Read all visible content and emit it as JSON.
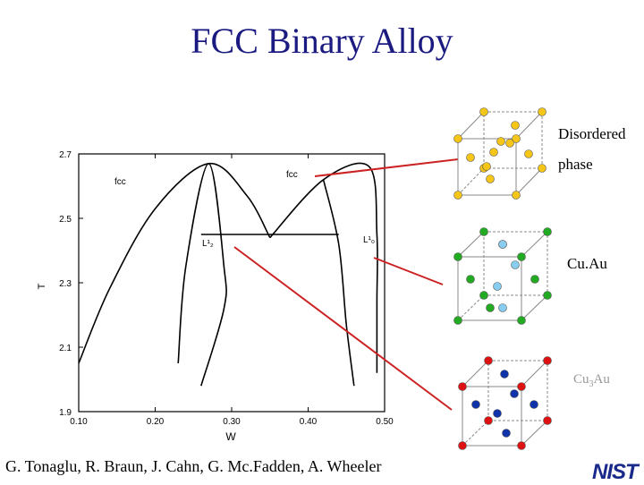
{
  "slide": {
    "title": "FCC Binary Alloy",
    "credits": "G. Tonaglu, R. Braun, J. Cahn, G. Mc.Fadden, A. Wheeler",
    "logo": "NIST"
  },
  "structures": [
    {
      "label_line1": "Disordered",
      "label_line2": "phase"
    },
    {
      "label": "Cu.Au"
    },
    {
      "label_base": "Cu",
      "label_sub": "3",
      "label_rest": "Au"
    }
  ],
  "chart_data": {
    "type": "line",
    "xlabel": "W",
    "ylabel": "T",
    "xlim": [
      0.1,
      0.5
    ],
    "ylim": [
      1.9,
      2.7
    ],
    "x_ticks": [
      "0.10",
      "0.20",
      "0.30",
      "0.40",
      "0.50"
    ],
    "y_ticks": [
      "2.7",
      "2.5",
      "2.3",
      "2.1",
      "1.9"
    ],
    "region_labels": [
      "fcc",
      "fcc",
      "L¹₂",
      "L¹₀"
    ],
    "series": [
      {
        "points": [
          [
            0.1,
            2.05
          ],
          [
            0.14,
            2.28
          ],
          [
            0.2,
            2.53
          ],
          [
            0.27,
            2.67
          ],
          [
            0.32,
            2.57
          ],
          [
            0.35,
            2.44
          ]
        ]
      },
      {
        "points": [
          [
            0.23,
            2.05
          ],
          [
            0.24,
            2.35
          ],
          [
            0.27,
            2.67
          ],
          [
            0.29,
            2.35
          ],
          [
            0.29,
            2.22
          ],
          [
            0.26,
            1.98
          ]
        ]
      },
      {
        "points": [
          [
            0.35,
            2.44
          ],
          [
            0.42,
            2.62
          ],
          [
            0.48,
            2.66
          ],
          [
            0.49,
            2.45
          ],
          [
            0.49,
            2.24
          ],
          [
            0.49,
            2.02
          ]
        ]
      },
      {
        "points": [
          [
            0.42,
            2.62
          ],
          [
            0.44,
            2.42
          ],
          [
            0.45,
            2.17
          ],
          [
            0.46,
            1.98
          ]
        ]
      },
      {
        "points": [
          [
            0.26,
            2.45
          ],
          [
            0.44,
            2.45
          ]
        ]
      }
    ]
  },
  "colors": {
    "title": "#1a1a80",
    "pointer_lines": "#cc2222",
    "atom_yellow": "#f5c518",
    "atom_green": "#22aa22",
    "atom_lightblue": "#88ccf0",
    "atom_red": "#dd1111",
    "atom_blue": "#1133aa"
  }
}
